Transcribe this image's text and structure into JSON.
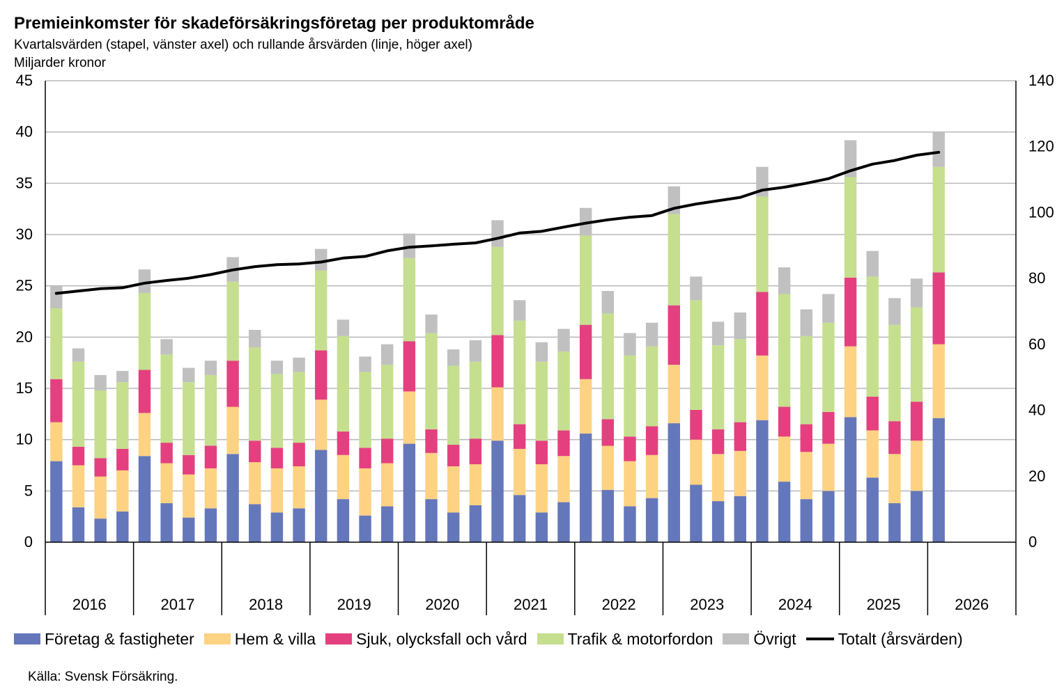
{
  "title": "Premieinkomster för skadeförsäkringsföretag per produktområde",
  "subtitle": "Kvartalsvärden (stapel, vänster axel) och rullande årsvärden (linje, höger axel)",
  "unit": "Miljarder kronor",
  "source": "Källa: Svensk Försäkring.",
  "chart_data": {
    "type": "bar",
    "stacked": true,
    "years": [
      "2016",
      "2017",
      "2018",
      "2019",
      "2020",
      "2021",
      "2022",
      "2023",
      "2024",
      "2025",
      "2026"
    ],
    "quarters_per_year": 4,
    "y_left": {
      "min": 0,
      "max": 45,
      "step": 5,
      "ticks": [
        "0",
        "5",
        "10",
        "15",
        "20",
        "25",
        "30",
        "35",
        "40",
        "45"
      ]
    },
    "y_right": {
      "min": 0,
      "max": 140,
      "step": 20,
      "ticks": [
        "0",
        "20",
        "40",
        "60",
        "80",
        "100",
        "120",
        "140"
      ]
    },
    "grid": true,
    "legend_position": "bottom",
    "series": [
      {
        "name": "Företag & fastigheter",
        "color": "#6577bb",
        "values": [
          7.9,
          3.4,
          2.3,
          3.0,
          8.4,
          3.8,
          2.4,
          3.3,
          8.6,
          3.7,
          2.9,
          3.3,
          9.0,
          4.2,
          2.6,
          3.5,
          9.6,
          4.2,
          2.9,
          3.6,
          9.9,
          4.6,
          2.9,
          3.9,
          10.6,
          5.1,
          3.5,
          4.3,
          11.6,
          5.6,
          4.0,
          4.5,
          11.9,
          5.9,
          4.2,
          5.0,
          12.2,
          6.3,
          3.8,
          5.0,
          12.1
        ]
      },
      {
        "name": "Hem & villa",
        "color": "#fdd282",
        "values": [
          3.8,
          4.1,
          4.1,
          4.0,
          4.2,
          3.9,
          4.2,
          3.9,
          4.6,
          4.1,
          4.3,
          4.1,
          4.9,
          4.3,
          4.6,
          4.2,
          5.1,
          4.5,
          4.5,
          4.0,
          5.2,
          4.5,
          4.7,
          4.5,
          5.3,
          4.3,
          4.4,
          4.2,
          5.7,
          4.4,
          4.6,
          4.4,
          6.3,
          4.4,
          4.6,
          4.6,
          6.9,
          4.6,
          4.8,
          4.9,
          7.2
        ]
      },
      {
        "name": "Sjuk, olycksfall och vård",
        "color": "#e4407f",
        "values": [
          4.2,
          1.8,
          1.8,
          2.1,
          4.2,
          2.0,
          1.9,
          2.2,
          4.5,
          2.1,
          2.0,
          2.3,
          4.8,
          2.3,
          2.0,
          2.4,
          4.9,
          2.3,
          2.1,
          2.5,
          5.1,
          2.4,
          2.3,
          2.5,
          5.3,
          2.6,
          2.4,
          2.8,
          5.8,
          2.9,
          2.4,
          2.8,
          6.2,
          2.9,
          2.7,
          3.1,
          6.7,
          3.3,
          3.2,
          3.8,
          7.0
        ]
      },
      {
        "name": "Trafik & motorfordon",
        "color": "#c5df8f",
        "values": [
          6.9,
          8.3,
          6.6,
          6.5,
          7.5,
          8.6,
          7.1,
          6.9,
          7.7,
          9.1,
          7.2,
          6.9,
          7.8,
          9.3,
          7.4,
          7.2,
          8.1,
          9.4,
          7.7,
          7.5,
          8.6,
          10.1,
          7.7,
          7.7,
          8.7,
          10.3,
          7.9,
          7.8,
          8.9,
          10.7,
          8.2,
          8.1,
          9.3,
          11.0,
          8.6,
          8.7,
          9.8,
          11.7,
          9.4,
          9.2,
          10.3
        ]
      },
      {
        "name": "Övrigt",
        "color": "#c0c0c0",
        "values": [
          2.2,
          1.3,
          1.5,
          1.1,
          2.3,
          1.5,
          1.4,
          1.4,
          2.4,
          1.7,
          1.3,
          1.4,
          2.1,
          1.6,
          1.5,
          2.0,
          2.4,
          1.8,
          1.6,
          2.1,
          2.6,
          2.0,
          1.9,
          2.2,
          2.7,
          2.2,
          2.2,
          2.3,
          2.7,
          2.3,
          2.3,
          2.6,
          2.9,
          2.6,
          2.6,
          2.8,
          3.6,
          2.5,
          2.6,
          2.8,
          3.4
        ]
      }
    ],
    "line": {
      "name": "Totalt (årsvärden)",
      "color": "#000000",
      "axis": "right",
      "values": [
        75.5,
        76.2,
        76.9,
        77.2,
        78.6,
        79.4,
        80.1,
        81.2,
        82.6,
        83.6,
        84.2,
        84.4,
        85.0,
        86.2,
        86.7,
        88.4,
        89.5,
        89.9,
        90.4,
        90.8,
        92.2,
        93.8,
        94.3,
        95.6,
        96.8,
        97.8,
        98.6,
        99.1,
        101.3,
        102.6,
        103.6,
        104.6,
        106.8,
        107.7,
        108.9,
        110.3,
        112.7,
        114.7,
        115.8,
        117.4,
        118.3
      ]
    }
  }
}
